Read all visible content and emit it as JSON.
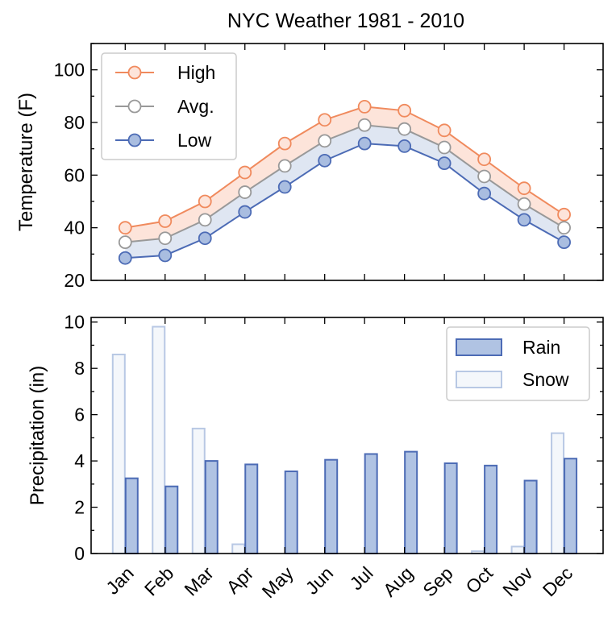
{
  "title": "NYC Weather 1981 - 2010",
  "chart_data": [
    {
      "type": "line",
      "x": [
        "Jan",
        "Feb",
        "Mar",
        "Apr",
        "May",
        "Jun",
        "Jul",
        "Aug",
        "Sep",
        "Oct",
        "Nov",
        "Dec"
      ],
      "series": [
        {
          "name": "High",
          "values": [
            40,
            42.5,
            50,
            61,
            72,
            81,
            86,
            84.5,
            77,
            66,
            55,
            45
          ],
          "color": "#f08a5d"
        },
        {
          "name": "Avg.",
          "values": [
            34.5,
            36,
            43,
            53.5,
            63.5,
            73,
            79,
            77.5,
            70.5,
            59.5,
            49,
            40
          ],
          "color": "#999999"
        },
        {
          "name": "Low",
          "values": [
            28.5,
            29.5,
            36,
            46,
            55.5,
            65.5,
            72,
            71,
            64.5,
            53,
            43,
            34.5
          ],
          "color": "#4c6bb5"
        }
      ],
      "fill_colors": {
        "high_avg": "#fde4da",
        "avg_low": "#dfe6f2"
      },
      "ylabel": "Temperature (F)",
      "ylim": [
        20,
        110
      ],
      "yticks": [
        "20",
        "40",
        "60",
        "80",
        "100"
      ],
      "legend_position": "top-left"
    },
    {
      "type": "bar",
      "categories": [
        "Jan",
        "Feb",
        "Mar",
        "Apr",
        "May",
        "Jun",
        "Jul",
        "Aug",
        "Sep",
        "Oct",
        "Nov",
        "Dec"
      ],
      "series": [
        {
          "name": "Snow",
          "values": [
            8.6,
            9.8,
            5.4,
            0.4,
            0,
            0,
            0,
            0,
            0,
            0.1,
            0.3,
            5.2
          ],
          "color": "#f4f7fb",
          "edge": "#b8c8e4"
        },
        {
          "name": "Rain",
          "values": [
            3.25,
            2.9,
            4.0,
            3.85,
            3.55,
            4.05,
            4.3,
            4.4,
            3.9,
            3.8,
            3.15,
            4.1
          ],
          "color": "#b0c3e3",
          "edge": "#4c6bb5"
        }
      ],
      "ylabel": "Precipitation (in)",
      "ylim": [
        0,
        10.2
      ],
      "yticks": [
        "0",
        "2",
        "4",
        "6",
        "8",
        "10"
      ],
      "legend_position": "top-right"
    }
  ]
}
